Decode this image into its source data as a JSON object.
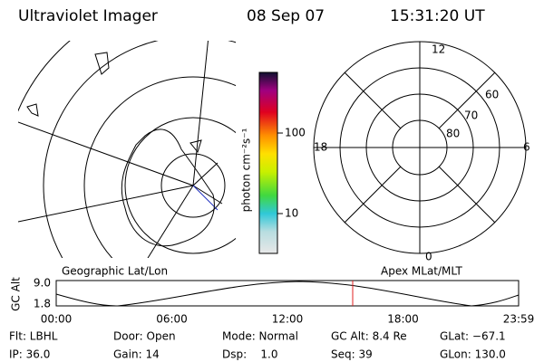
{
  "header": {
    "title": "Ultraviolet Imager",
    "date": "08 Sep 07",
    "time": "15:31:20 UT"
  },
  "colorbar": {
    "unit": "photon cm⁻²s⁻¹",
    "labels": [
      "100",
      "10"
    ]
  },
  "polar": {
    "top": "12",
    "bottom": "0",
    "left": "18",
    "right": "6",
    "lat": [
      "60",
      "70",
      "80"
    ]
  },
  "timeline": {
    "left_title": "Geographic Lat/Lon",
    "right_title": "Apex MLat/MLT",
    "ylabel": "GC Alt",
    "yticks": [
      "9.0",
      "1.8"
    ],
    "xticks": [
      "00:00",
      "06:00",
      "12:00",
      "18:00",
      "23:59"
    ]
  },
  "footer": {
    "rows": [
      [
        "Flt: LBHL",
        "Door: Open",
        "Mode: Normal",
        "GC Alt: 8.4 Re",
        "GLat: −67.1"
      ],
      [
        "IP: 36.0",
        "Gain: 14",
        "Dsp:    1.0",
        "Seq: 39",
        "GLon: 130.0"
      ]
    ]
  }
}
